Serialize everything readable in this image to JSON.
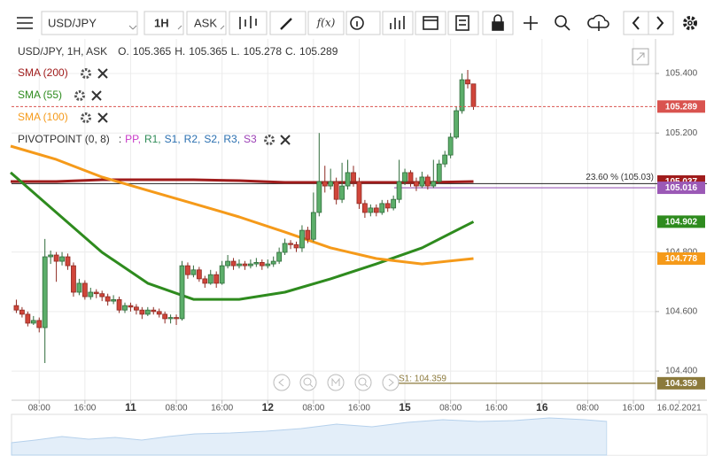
{
  "toolbar": {
    "symbol": "USD/JPY",
    "timeframe": "1H",
    "side": "ASK",
    "fx": "f(x)"
  },
  "chart_data": {
    "type": "candlestick",
    "title": "USD/JPY, 1H, ASK",
    "ohlc_labels": [
      "O.",
      "H.",
      "L.",
      "C."
    ],
    "bull_color": "#5cae6a",
    "bear_color": "#d0453a",
    "xlim": [
      0,
      121
    ],
    "ylim": [
      104.302,
      105.528
    ],
    "grid": true,
    "yticks": [
      {
        "value": 104.4,
        "label": "104.400"
      },
      {
        "value": 104.6,
        "label": "104.600"
      },
      {
        "value": 104.8,
        "label": "104.800"
      },
      {
        "value": 105.2,
        "label": "105.200"
      },
      {
        "value": 105.4,
        "label": "105.400"
      }
    ],
    "xticks": [
      {
        "value": 5,
        "label": "08:00"
      },
      {
        "value": 13,
        "label": "16:00"
      },
      {
        "value": 21,
        "label": "11"
      },
      {
        "value": 29,
        "label": "08:00"
      },
      {
        "value": 37,
        "label": "16:00"
      },
      {
        "value": 45,
        "label": "12"
      },
      {
        "value": 53,
        "label": "08:00"
      },
      {
        "value": 61,
        "label": "16:00"
      },
      {
        "value": 69,
        "label": "15"
      },
      {
        "value": 77,
        "label": "08:00"
      },
      {
        "value": 85,
        "label": "16:00"
      },
      {
        "value": 93,
        "label": "16"
      },
      {
        "value": 101,
        "label": "08:00"
      },
      {
        "value": 109,
        "label": "16:00"
      },
      {
        "value": 117,
        "label": "16.02.2021"
      }
    ],
    "x": [
      1,
      2,
      3,
      4,
      5,
      6,
      7,
      8,
      9,
      10,
      11,
      12,
      13,
      14,
      15,
      16,
      17,
      18,
      19,
      20,
      21,
      22,
      23,
      24,
      25,
      26,
      27,
      28,
      29,
      30,
      31,
      32,
      33,
      34,
      35,
      36,
      37,
      38,
      39,
      40,
      41,
      42,
      43,
      44,
      45,
      46,
      47,
      48,
      49,
      50,
      51,
      52,
      53,
      54,
      55,
      56,
      57,
      58,
      59,
      60,
      61,
      62,
      63,
      64,
      65,
      66,
      67,
      68,
      69,
      70,
      71,
      72,
      73,
      74,
      75,
      76,
      77,
      78,
      79,
      80,
      81
    ],
    "ohlc": [
      [
        104.62,
        104.64,
        104.595,
        104.605
      ],
      [
        104.605,
        104.615,
        104.58,
        104.591
      ],
      [
        104.591,
        104.6,
        104.55,
        104.561
      ],
      [
        104.561,
        104.585,
        104.555,
        104.57
      ],
      [
        104.57,
        104.58,
        104.53,
        104.546
      ],
      [
        104.546,
        104.844,
        104.427,
        104.784
      ],
      [
        104.784,
        104.805,
        104.76,
        104.79
      ],
      [
        104.79,
        104.8,
        104.7,
        104.769
      ],
      [
        104.769,
        104.8,
        104.755,
        104.784
      ],
      [
        104.784,
        104.795,
        104.74,
        104.754
      ],
      [
        104.754,
        104.765,
        104.65,
        104.665
      ],
      [
        104.665,
        104.71,
        104.655,
        104.695
      ],
      [
        104.695,
        104.705,
        104.64,
        104.65
      ],
      [
        104.65,
        104.68,
        104.64,
        104.665
      ],
      [
        104.665,
        104.675,
        104.645,
        104.66
      ],
      [
        104.66,
        104.67,
        104.635,
        104.65
      ],
      [
        104.65,
        104.66,
        104.62,
        104.635
      ],
      [
        104.635,
        104.655,
        104.625,
        104.64
      ],
      [
        104.64,
        104.65,
        104.595,
        104.605
      ],
      [
        104.605,
        104.63,
        104.595,
        104.62
      ],
      [
        104.62,
        104.63,
        104.6,
        104.615
      ],
      [
        104.615,
        104.625,
        104.59,
        104.605
      ],
      [
        104.605,
        104.615,
        104.575,
        104.591
      ],
      [
        104.591,
        104.615,
        104.585,
        104.605
      ],
      [
        104.605,
        104.615,
        104.59,
        104.6
      ],
      [
        104.6,
        104.61,
        104.58,
        104.591
      ],
      [
        104.591,
        104.6,
        104.56,
        104.576
      ],
      [
        104.576,
        104.59,
        104.56,
        104.58
      ],
      [
        104.58,
        104.59,
        104.555,
        104.576
      ],
      [
        104.576,
        104.77,
        104.57,
        104.754
      ],
      [
        104.754,
        104.765,
        104.71,
        104.724
      ],
      [
        104.724,
        104.755,
        104.715,
        104.74
      ],
      [
        104.74,
        104.75,
        104.7,
        104.71
      ],
      [
        104.71,
        104.72,
        104.68,
        104.695
      ],
      [
        104.695,
        104.74,
        104.69,
        104.724
      ],
      [
        104.724,
        104.735,
        104.68,
        104.695
      ],
      [
        104.695,
        104.77,
        104.69,
        104.754
      ],
      [
        104.754,
        104.79,
        104.745,
        104.769
      ],
      [
        104.769,
        104.78,
        104.74,
        104.754
      ],
      [
        104.754,
        104.775,
        104.745,
        104.76
      ],
      [
        104.76,
        104.77,
        104.74,
        104.754
      ],
      [
        104.754,
        104.775,
        104.745,
        104.76
      ],
      [
        104.76,
        104.78,
        104.75,
        104.765
      ],
      [
        104.765,
        104.775,
        104.74,
        104.754
      ],
      [
        104.754,
        104.775,
        104.745,
        104.76
      ],
      [
        104.76,
        104.785,
        104.75,
        104.769
      ],
      [
        104.769,
        104.815,
        104.76,
        104.799
      ],
      [
        104.799,
        104.845,
        104.79,
        104.829
      ],
      [
        104.829,
        104.84,
        104.81,
        104.825
      ],
      [
        104.825,
        104.835,
        104.8,
        104.814
      ],
      [
        104.814,
        104.89,
        104.8,
        104.873
      ],
      [
        104.873,
        104.885,
        104.83,
        104.843
      ],
      [
        104.843,
        105.0,
        104.835,
        104.933
      ],
      [
        104.933,
        105.2,
        104.92,
        105.037
      ],
      [
        105.037,
        105.09,
        105.0,
        105.022
      ],
      [
        105.022,
        105.08,
        105.01,
        105.037
      ],
      [
        105.037,
        105.05,
        104.96,
        104.977
      ],
      [
        104.977,
        105.1,
        104.965,
        105.022
      ],
      [
        105.022,
        105.11,
        105.01,
        105.067
      ],
      [
        105.067,
        105.09,
        105.02,
        105.037
      ],
      [
        105.037,
        105.05,
        104.945,
        104.963
      ],
      [
        104.963,
        104.975,
        104.915,
        104.933
      ],
      [
        104.933,
        104.96,
        104.92,
        104.948
      ],
      [
        104.948,
        104.96,
        104.92,
        104.933
      ],
      [
        104.933,
        104.975,
        104.925,
        104.963
      ],
      [
        104.963,
        104.975,
        104.935,
        104.948
      ],
      [
        104.948,
        104.99,
        104.94,
        104.977
      ],
      [
        104.977,
        105.11,
        104.965,
        105.037
      ],
      [
        105.037,
        105.08,
        105.025,
        105.067
      ],
      [
        105.067,
        105.075,
        105.02,
        105.037
      ],
      [
        105.037,
        105.05,
        105.005,
        105.022
      ],
      [
        105.022,
        105.07,
        105.015,
        105.052
      ],
      [
        105.052,
        105.06,
        105.01,
        105.022
      ],
      [
        105.022,
        105.11,
        105.015,
        105.037
      ],
      [
        105.037,
        105.11,
        105.03,
        105.096
      ],
      [
        105.096,
        105.14,
        105.085,
        105.126
      ],
      [
        105.126,
        105.2,
        105.115,
        105.186
      ],
      [
        105.186,
        105.29,
        105.18,
        105.275
      ],
      [
        105.275,
        105.4,
        105.265,
        105.379
      ],
      [
        105.379,
        105.412,
        105.35,
        105.365
      ],
      [
        105.365,
        105.365,
        105.278,
        105.289
      ]
    ],
    "series": [
      {
        "name": "SMA (200)",
        "color": "#a01c1c",
        "x": [
          0,
          8,
          16,
          24,
          32,
          40,
          48,
          56,
          64,
          72,
          81
        ],
        "values": [
          105.037,
          105.037,
          105.043,
          105.043,
          105.043,
          105.04,
          105.034,
          105.034,
          105.034,
          105.034,
          105.037
        ]
      },
      {
        "name": "SMA (55)",
        "color": "#2e8b1e",
        "x": [
          0,
          8,
          16,
          24,
          32,
          40,
          48,
          56,
          64,
          72,
          81
        ],
        "values": [
          105.067,
          104.933,
          104.799,
          104.695,
          104.641,
          104.641,
          104.665,
          104.71,
          104.76,
          104.814,
          104.902
        ]
      },
      {
        "name": "SMA (100)",
        "color": "#f59a1a",
        "x": [
          0,
          8,
          16,
          24,
          32,
          40,
          48,
          56,
          64,
          72,
          81
        ],
        "values": [
          105.156,
          105.111,
          105.052,
          105.007,
          104.963,
          104.918,
          104.867,
          104.814,
          104.778,
          104.76,
          104.778
        ]
      }
    ],
    "pivot": {
      "label": "PIVOTPOINT (0, 8)",
      "separator": ":",
      "items": [
        {
          "name": "PP,",
          "color": "#c83ac8"
        },
        {
          "name": "R1,",
          "color": "#2e8b57"
        },
        {
          "name": "S1,",
          "color": "#2a6fb0"
        },
        {
          "name": "R2,",
          "color": "#2a6fb0"
        },
        {
          "name": "S2,",
          "color": "#2a6fb0"
        },
        {
          "name": "R3,",
          "color": "#2a6fb0"
        },
        {
          "name": "S3",
          "color": "#9b3fb5"
        }
      ]
    },
    "last_price": {
      "value": 105.289,
      "color": "#d9534f"
    },
    "fib": {
      "label": "23.60 % (105.03)",
      "value": 105.03,
      "color": "#222222"
    },
    "pivot_lines": [
      {
        "value": 105.016,
        "color": "#9b59b6"
      },
      {
        "label": "S1: 104.359",
        "value": 104.359,
        "color": "#8c7a3c"
      }
    ]
  }
}
